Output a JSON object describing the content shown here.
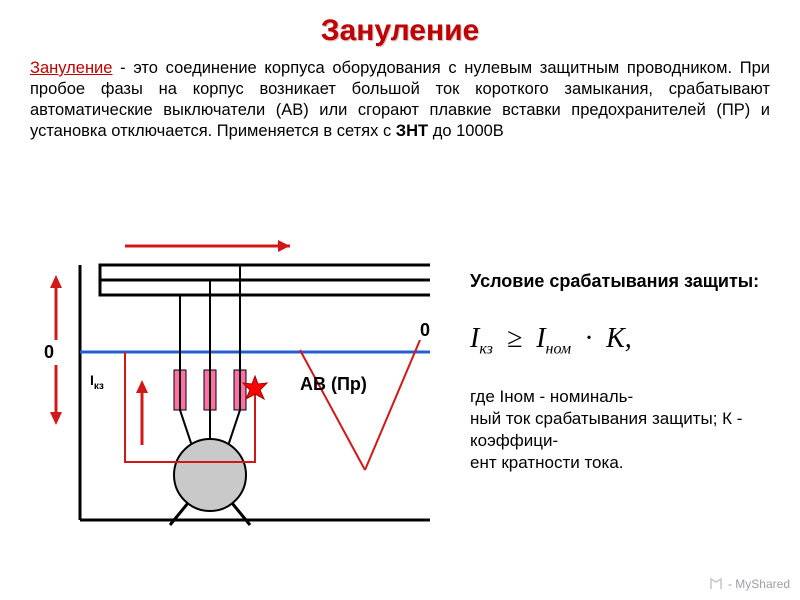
{
  "title": "Зануление",
  "paragraph": {
    "keyword": "Зануление",
    "rest1": " - это соединение корпуса оборудования с нулевым защитным проводником. При пробое фазы на корпус возникает большой ток короткого замыкания, срабатывают автоматические выключатели (АВ) или сгорают плавкие вставки предохранителей (ПР) и установка отключается. Применяется в сетях с ",
    "bold": "ЗНТ",
    "rest2": " до 1000В"
  },
  "condition_title": "Условие срабатывания защиты:",
  "formula": {
    "I": "I",
    "kz": "кз",
    "ge": "≥",
    "nom": "ном",
    "dot": "·",
    "K": "К",
    "comma": ","
  },
  "explanation": "где  Iном - номиналь-\nный ток срабатывания защиты; К - коэффици-\nент кратности тока.",
  "diagram": {
    "labels": {
      "zero_left": "0",
      "zero_right": "0",
      "ikz": "I",
      "ikz_sub": "кз",
      "abpr": "АВ (Пр)"
    },
    "colors": {
      "bus": "#000000",
      "neutral": "#1f5fd0",
      "fault": "#d01818",
      "fuse_fill": "#ff6fa8",
      "arrow": "#d01818",
      "motor_fill": "#c9c9c9",
      "spark": "#ff0000"
    },
    "stroke": {
      "bus": 3,
      "thin": 2,
      "neutral": 2,
      "fault": 2
    }
  },
  "watermark": "- MyShared"
}
